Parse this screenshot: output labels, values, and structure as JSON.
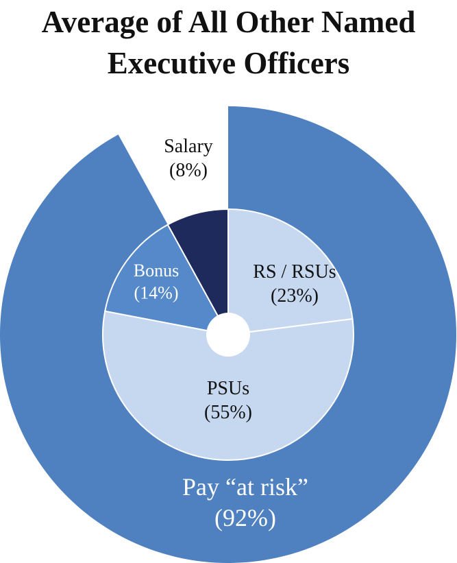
{
  "chart_data": {
    "type": "nested-pie",
    "title": "Average of All Other Named Executive Officers",
    "rings": [
      {
        "labels": [
          "Pay “at risk”"
        ],
        "values": [
          92
        ],
        "value_labels": [
          "(92%)"
        ],
        "colors": [
          "#4f80c0"
        ]
      },
      {
        "labels": [
          "RS / RSUs",
          "PSUs",
          "Bonus",
          "Salary"
        ],
        "values": [
          23,
          55,
          14,
          8
        ],
        "value_labels": [
          "(23%)",
          "(55%)",
          "(14%)",
          "(8%)"
        ],
        "colors": [
          "#c6d8f0",
          "#c6d8f0",
          "#5589c9",
          "#1f2a5c"
        ]
      }
    ]
  }
}
